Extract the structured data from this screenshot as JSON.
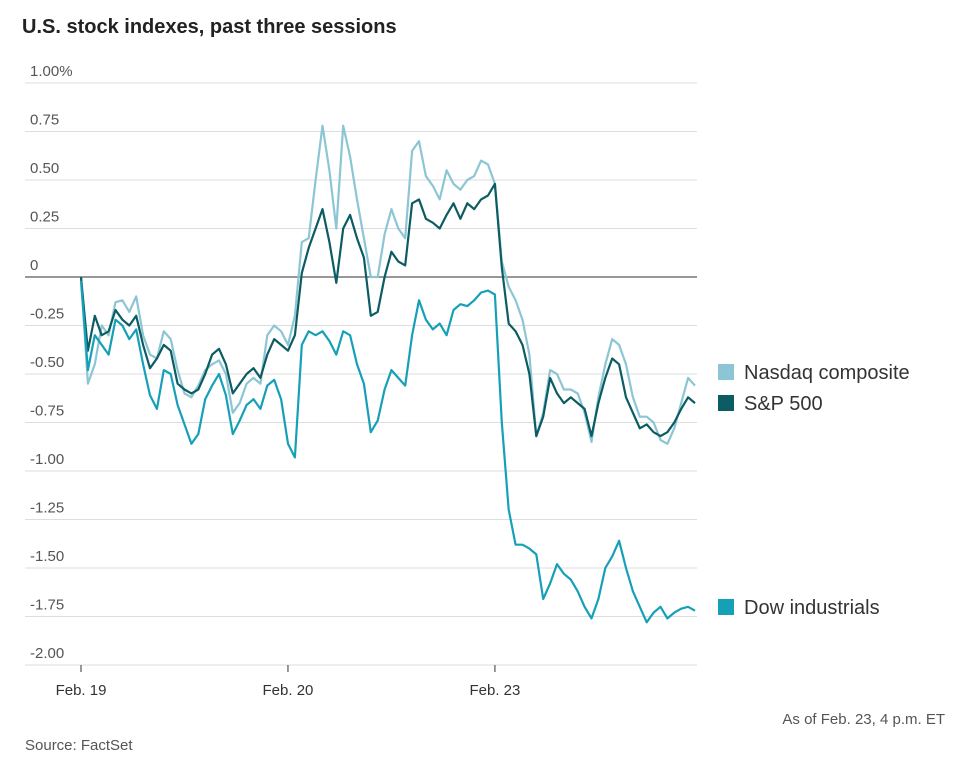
{
  "chart_data": {
    "type": "line",
    "title": "U.S. stock indexes, past three sessions",
    "note": "As of Feb. 23, 4 p.m. ET",
    "source": "Source: FactSet",
    "categories": [
      "Feb. 19",
      null,
      null,
      null,
      null,
      null,
      null,
      null,
      null,
      null,
      null,
      null,
      null,
      null,
      null,
      null,
      null,
      null,
      null,
      null,
      null,
      null,
      null,
      null,
      null,
      null,
      null,
      null,
      null,
      null,
      "Feb. 20",
      null,
      null,
      null,
      null,
      null,
      null,
      null,
      null,
      null,
      null,
      null,
      null,
      null,
      null,
      null,
      null,
      null,
      null,
      null,
      null,
      null,
      null,
      null,
      null,
      null,
      null,
      null,
      null,
      null,
      "Feb. 23",
      null,
      null,
      null,
      null,
      null,
      null,
      null,
      null,
      null,
      null,
      null,
      null,
      null,
      null,
      null,
      null,
      null,
      null,
      null,
      null,
      null,
      null,
      null,
      null,
      null,
      null,
      null,
      null,
      null
    ],
    "ylim": [
      -2,
      1
    ],
    "yticks": [
      {
        "value": 1,
        "label": "1.00%"
      },
      0.75,
      {
        "value": 0.5,
        "label": "0.50"
      },
      0.25,
      0,
      -0.25,
      {
        "value": -0.5,
        "label": "-0.50"
      },
      -0.75,
      {
        "value": -1,
        "label": "-1.00"
      },
      -1.25,
      {
        "value": -1.5,
        "label": "-1.50"
      },
      -1.75,
      {
        "value": -2,
        "label": "-2.00"
      }
    ],
    "grid": true,
    "series": [
      {
        "name": "Nasdaq composite",
        "color": "#8cc6d4",
        "values": [
          0.0,
          -0.55,
          -0.45,
          -0.25,
          -0.3,
          -0.13,
          -0.12,
          -0.18,
          -0.1,
          -0.3,
          -0.4,
          -0.42,
          -0.28,
          -0.32,
          -0.48,
          -0.6,
          -0.62,
          -0.56,
          -0.48,
          -0.45,
          -0.43,
          -0.5,
          -0.7,
          -0.65,
          -0.55,
          -0.52,
          -0.55,
          -0.3,
          -0.25,
          -0.28,
          -0.35,
          -0.2,
          0.18,
          0.2,
          0.5,
          0.78,
          0.55,
          0.25,
          0.78,
          0.62,
          0.4,
          0.2,
          0.0,
          0.0,
          0.22,
          0.35,
          0.25,
          0.2,
          0.65,
          0.7,
          0.52,
          0.47,
          0.4,
          0.55,
          0.48,
          0.45,
          0.5,
          0.52,
          0.6,
          0.58,
          0.48,
          0.08,
          -0.05,
          -0.12,
          -0.22,
          -0.4,
          -0.82,
          -0.7,
          -0.48,
          -0.5,
          -0.58,
          -0.58,
          -0.6,
          -0.7,
          -0.85,
          -0.62,
          -0.45,
          -0.32,
          -0.35,
          -0.45,
          -0.62,
          -0.72,
          -0.72,
          -0.75,
          -0.84,
          -0.86,
          -0.78,
          -0.65,
          -0.52,
          -0.56
        ]
      },
      {
        "name": "S&P 500",
        "color": "#0c5c63",
        "values": [
          0.0,
          -0.38,
          -0.2,
          -0.3,
          -0.28,
          -0.17,
          -0.22,
          -0.25,
          -0.2,
          -0.35,
          -0.47,
          -0.42,
          -0.35,
          -0.38,
          -0.55,
          -0.58,
          -0.6,
          -0.58,
          -0.5,
          -0.4,
          -0.37,
          -0.45,
          -0.6,
          -0.55,
          -0.5,
          -0.47,
          -0.52,
          -0.4,
          -0.32,
          -0.35,
          -0.38,
          -0.3,
          0.02,
          0.15,
          0.25,
          0.35,
          0.18,
          -0.03,
          0.25,
          0.32,
          0.2,
          0.1,
          -0.2,
          -0.18,
          0.0,
          0.13,
          0.08,
          0.06,
          0.38,
          0.4,
          0.3,
          0.28,
          0.25,
          0.32,
          0.38,
          0.3,
          0.38,
          0.35,
          0.4,
          0.42,
          0.48,
          0.05,
          -0.24,
          -0.28,
          -0.35,
          -0.5,
          -0.82,
          -0.72,
          -0.52,
          -0.6,
          -0.65,
          -0.62,
          -0.65,
          -0.68,
          -0.82,
          -0.65,
          -0.52,
          -0.42,
          -0.45,
          -0.62,
          -0.7,
          -0.78,
          -0.76,
          -0.8,
          -0.82,
          -0.8,
          -0.75,
          -0.68,
          -0.62,
          -0.65
        ]
      },
      {
        "name": "Dow industrials",
        "color": "#16a0b8",
        "values": [
          -0.02,
          -0.48,
          -0.3,
          -0.35,
          -0.4,
          -0.22,
          -0.25,
          -0.32,
          -0.27,
          -0.45,
          -0.61,
          -0.68,
          -0.48,
          -0.5,
          -0.66,
          -0.76,
          -0.86,
          -0.81,
          -0.63,
          -0.56,
          -0.5,
          -0.61,
          -0.81,
          -0.74,
          -0.66,
          -0.63,
          -0.68,
          -0.56,
          -0.53,
          -0.63,
          -0.86,
          -0.93,
          -0.35,
          -0.28,
          -0.3,
          -0.28,
          -0.33,
          -0.4,
          -0.28,
          -0.3,
          -0.45,
          -0.55,
          -0.8,
          -0.74,
          -0.58,
          -0.48,
          -0.52,
          -0.56,
          -0.3,
          -0.12,
          -0.22,
          -0.27,
          -0.24,
          -0.3,
          -0.17,
          -0.14,
          -0.15,
          -0.12,
          -0.08,
          -0.07,
          -0.09,
          -0.75,
          -1.2,
          -1.38,
          -1.38,
          -1.4,
          -1.43,
          -1.66,
          -1.58,
          -1.48,
          -1.53,
          -1.56,
          -1.62,
          -1.7,
          -1.76,
          -1.66,
          -1.5,
          -1.44,
          -1.36,
          -1.5,
          -1.62,
          -1.7,
          -1.78,
          -1.73,
          -1.7,
          -1.76,
          -1.73,
          -1.71,
          -1.7,
          -1.72
        ]
      }
    ]
  }
}
